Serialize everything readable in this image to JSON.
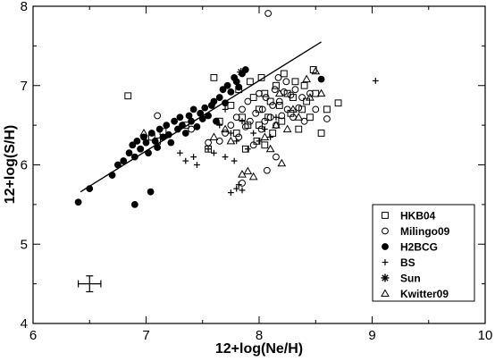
{
  "chart_data": {
    "type": "scatter",
    "xlabel": "12+log(Ne/H)",
    "ylabel": "12+log(S/H)",
    "xlim": [
      6,
      10
    ],
    "ylim": [
      4,
      8
    ],
    "xticks": [
      "6",
      "7",
      "8",
      "9",
      "10"
    ],
    "yticks": [
      "4",
      "5",
      "6",
      "7",
      "8"
    ],
    "legend_position": "bottom-right",
    "fit_line": {
      "x": [
        6.42,
        8.55
      ],
      "y": [
        5.66,
        7.55
      ]
    },
    "error_bar": {
      "x": 6.5,
      "y": 4.5,
      "xerr": 0.1,
      "yerr": 0.1
    },
    "series": [
      {
        "name": "HKB04",
        "marker": "square",
        "points": [
          [
            6.84,
            6.87
          ],
          [
            7.05,
            6.35
          ],
          [
            7.1,
            6.3
          ],
          [
            7.15,
            6.42
          ],
          [
            7.35,
            6.5
          ],
          [
            7.55,
            6.2
          ],
          [
            7.6,
            7.1
          ],
          [
            7.65,
            6.55
          ],
          [
            7.75,
            6.75
          ],
          [
            7.8,
            6.4
          ],
          [
            7.82,
            6.95
          ],
          [
            7.85,
            6.6
          ],
          [
            7.9,
            6.5
          ],
          [
            7.92,
            7.05
          ],
          [
            7.95,
            6.85
          ],
          [
            7.98,
            6.3
          ],
          [
            8.0,
            6.7
          ],
          [
            8.0,
            6.5
          ],
          [
            8.02,
            7.1
          ],
          [
            8.05,
            6.9
          ],
          [
            8.08,
            6.6
          ],
          [
            8.1,
            6.8
          ],
          [
            8.12,
            6.4
          ],
          [
            8.15,
            7.0
          ],
          [
            8.18,
            6.75
          ],
          [
            8.2,
            6.55
          ],
          [
            8.22,
            7.15
          ],
          [
            8.25,
            6.9
          ],
          [
            8.28,
            6.65
          ],
          [
            8.3,
            6.85
          ],
          [
            8.32,
            7.05
          ],
          [
            8.35,
            6.45
          ],
          [
            8.38,
            6.7
          ],
          [
            8.4,
            7.0
          ],
          [
            8.42,
            6.8
          ],
          [
            8.45,
            6.6
          ],
          [
            8.48,
            7.2
          ],
          [
            8.5,
            6.9
          ],
          [
            8.55,
            6.4
          ],
          [
            8.6,
            6.7
          ],
          [
            8.7,
            6.78
          ],
          [
            7.88,
            6.2
          ],
          [
            8.05,
            6.25
          ]
        ]
      },
      {
        "name": "Milingo09",
        "marker": "circle",
        "points": [
          [
            6.95,
            6.2
          ],
          [
            7.1,
            6.62
          ],
          [
            7.4,
            6.45
          ],
          [
            7.55,
            6.28
          ],
          [
            7.65,
            6.3
          ],
          [
            7.7,
            6.4
          ],
          [
            7.75,
            6.5
          ],
          [
            7.8,
            6.6
          ],
          [
            7.82,
            6.35
          ],
          [
            7.85,
            6.7
          ],
          [
            7.88,
            6.48
          ],
          [
            7.9,
            6.8
          ],
          [
            7.92,
            6.55
          ],
          [
            7.95,
            6.25
          ],
          [
            7.97,
            6.65
          ],
          [
            8.0,
            6.9
          ],
          [
            8.02,
            6.45
          ],
          [
            8.03,
            6.7
          ],
          [
            8.05,
            6.55
          ],
          [
            8.06,
            6.85
          ],
          [
            8.08,
            7.91
          ],
          [
            8.1,
            6.6
          ],
          [
            8.12,
            6.75
          ],
          [
            8.14,
            6.95
          ],
          [
            8.15,
            6.5
          ],
          [
            8.17,
            7.1
          ],
          [
            8.18,
            6.8
          ],
          [
            8.2,
            6.62
          ],
          [
            8.22,
            6.92
          ],
          [
            8.24,
            7.05
          ],
          [
            8.25,
            6.7
          ],
          [
            8.28,
            6.88
          ],
          [
            8.3,
            6.6
          ],
          [
            8.32,
            6.95
          ],
          [
            8.35,
            6.72
          ],
          [
            8.38,
            6.85
          ],
          [
            8.4,
            6.55
          ],
          [
            8.45,
            6.9
          ],
          [
            8.5,
            6.7
          ],
          [
            8.6,
            6.58
          ],
          [
            8.07,
            5.93
          ],
          [
            8.15,
            6.1
          ],
          [
            7.85,
            5.77
          ]
        ]
      },
      {
        "name": "H2BCG",
        "marker": "filled-circle",
        "points": [
          [
            6.4,
            5.53
          ],
          [
            6.5,
            5.7
          ],
          [
            6.7,
            5.87
          ],
          [
            6.75,
            6.0
          ],
          [
            6.8,
            6.05
          ],
          [
            6.85,
            6.15
          ],
          [
            6.88,
            6.25
          ],
          [
            6.9,
            6.1
          ],
          [
            6.92,
            6.3
          ],
          [
            6.95,
            6.2
          ],
          [
            6.98,
            6.35
          ],
          [
            7.0,
            6.28
          ],
          [
            7.02,
            6.15
          ],
          [
            7.04,
            5.66
          ],
          [
            7.05,
            6.4
          ],
          [
            7.08,
            6.3
          ],
          [
            7.1,
            6.22
          ],
          [
            7.12,
            6.45
          ],
          [
            7.15,
            6.35
          ],
          [
            7.18,
            6.5
          ],
          [
            7.2,
            6.38
          ],
          [
            7.22,
            6.28
          ],
          [
            7.25,
            6.55
          ],
          [
            7.28,
            6.45
          ],
          [
            7.3,
            6.6
          ],
          [
            7.32,
            6.5
          ],
          [
            7.35,
            6.4
          ],
          [
            7.38,
            6.62
          ],
          [
            7.4,
            6.55
          ],
          [
            7.42,
            6.7
          ],
          [
            7.45,
            6.48
          ],
          [
            7.48,
            6.65
          ],
          [
            7.5,
            6.58
          ],
          [
            7.52,
            6.72
          ],
          [
            7.55,
            6.62
          ],
          [
            7.58,
            6.75
          ],
          [
            7.6,
            6.8
          ],
          [
            7.62,
            6.55
          ],
          [
            7.65,
            6.85
          ],
          [
            7.68,
            6.95
          ],
          [
            7.7,
            6.78
          ],
          [
            7.72,
            7.0
          ],
          [
            7.75,
            6.92
          ],
          [
            7.78,
            7.1
          ],
          [
            7.8,
            7.05
          ],
          [
            7.82,
            6.98
          ],
          [
            7.85,
            7.15
          ],
          [
            7.88,
            7.2
          ],
          [
            8.55,
            7.08
          ],
          [
            6.9,
            5.5
          ]
        ]
      },
      {
        "name": "BS",
        "marker": "plus",
        "points": [
          [
            7.3,
            6.15
          ],
          [
            7.35,
            6.05
          ],
          [
            7.42,
            6.1
          ],
          [
            7.45,
            6.0
          ],
          [
            7.55,
            6.2
          ],
          [
            7.6,
            6.15
          ],
          [
            7.7,
            6.1
          ],
          [
            7.75,
            5.65
          ],
          [
            7.8,
            5.7
          ],
          [
            7.82,
            5.75
          ],
          [
            7.85,
            5.68
          ],
          [
            7.78,
            6.05
          ],
          [
            7.65,
            6.5
          ],
          [
            7.7,
            6.7
          ],
          [
            7.75,
            6.4
          ],
          [
            7.8,
            6.3
          ],
          [
            7.85,
            6.55
          ],
          [
            7.9,
            6.2
          ],
          [
            7.95,
            6.4
          ],
          [
            8.0,
            6.3
          ],
          [
            8.05,
            6.45
          ],
          [
            8.1,
            6.35
          ],
          [
            8.15,
            6.6
          ],
          [
            9.03,
            7.06
          ]
        ]
      },
      {
        "name": "Sun",
        "marker": "asterisk",
        "points": [
          [
            7.84,
            7.17
          ]
        ]
      },
      {
        "name": "Kwitter09",
        "marker": "triangle",
        "points": [
          [
            6.98,
            6.4
          ],
          [
            7.6,
            6.35
          ],
          [
            7.7,
            6.45
          ],
          [
            7.75,
            6.3
          ],
          [
            7.85,
            5.88
          ],
          [
            7.9,
            5.92
          ],
          [
            8.05,
            6.35
          ],
          [
            8.1,
            6.2
          ],
          [
            8.15,
            6.5
          ],
          [
            8.18,
            6.9
          ],
          [
            8.2,
            6.02
          ],
          [
            8.25,
            6.45
          ],
          [
            8.3,
            6.7
          ],
          [
            8.35,
            6.6
          ],
          [
            8.42,
            7.08
          ],
          [
            8.45,
            6.85
          ],
          [
            8.5,
            7.18
          ],
          [
            8.55,
            6.9
          ],
          [
            7.95,
            5.85
          ]
        ]
      }
    ]
  }
}
